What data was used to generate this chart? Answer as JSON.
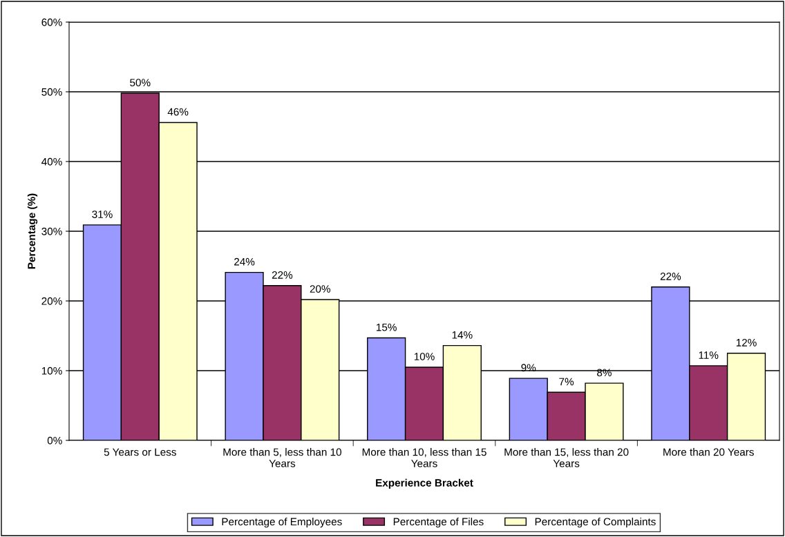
{
  "chart_data": {
    "type": "bar",
    "xlabel": "Experience Bracket",
    "ylabel": "Percentage (%)",
    "categories": [
      "5 Years or Less",
      "More than 5, less than 10\nYears",
      "More than 10, less than 15\nYears",
      "More than 15, less than 20\nYears",
      "More than 20 Years"
    ],
    "series": [
      {
        "name": "Percentage of Employees",
        "color": "#9999ff",
        "values": [
          30.9,
          24.1,
          14.7,
          8.9,
          22.0
        ],
        "value_labels": [
          "31%",
          "24%",
          "15%",
          "9%",
          "22%"
        ]
      },
      {
        "name": "Percentage of Files",
        "color": "#993366",
        "values": [
          49.8,
          22.2,
          10.5,
          6.9,
          10.7
        ],
        "value_labels": [
          "50%",
          "22%",
          "10%",
          "7%",
          "11%"
        ]
      },
      {
        "name": "Percentage of Complaints",
        "color": "#ffffcc",
        "values": [
          45.6,
          20.2,
          13.6,
          8.2,
          12.5
        ],
        "value_labels": [
          "46%",
          "20%",
          "14%",
          "8%",
          "12%"
        ]
      }
    ],
    "ylim": [
      0,
      60
    ],
    "yticks": [
      {
        "value": 0,
        "label": "0%"
      },
      {
        "value": 10,
        "label": "10%"
      },
      {
        "value": 20,
        "label": "20%"
      },
      {
        "value": 30,
        "label": "30%"
      },
      {
        "value": 40,
        "label": "40%"
      },
      {
        "value": 50,
        "label": "50%"
      },
      {
        "value": 60,
        "label": "60%"
      }
    ],
    "grid": "y",
    "legend": "bottom"
  }
}
